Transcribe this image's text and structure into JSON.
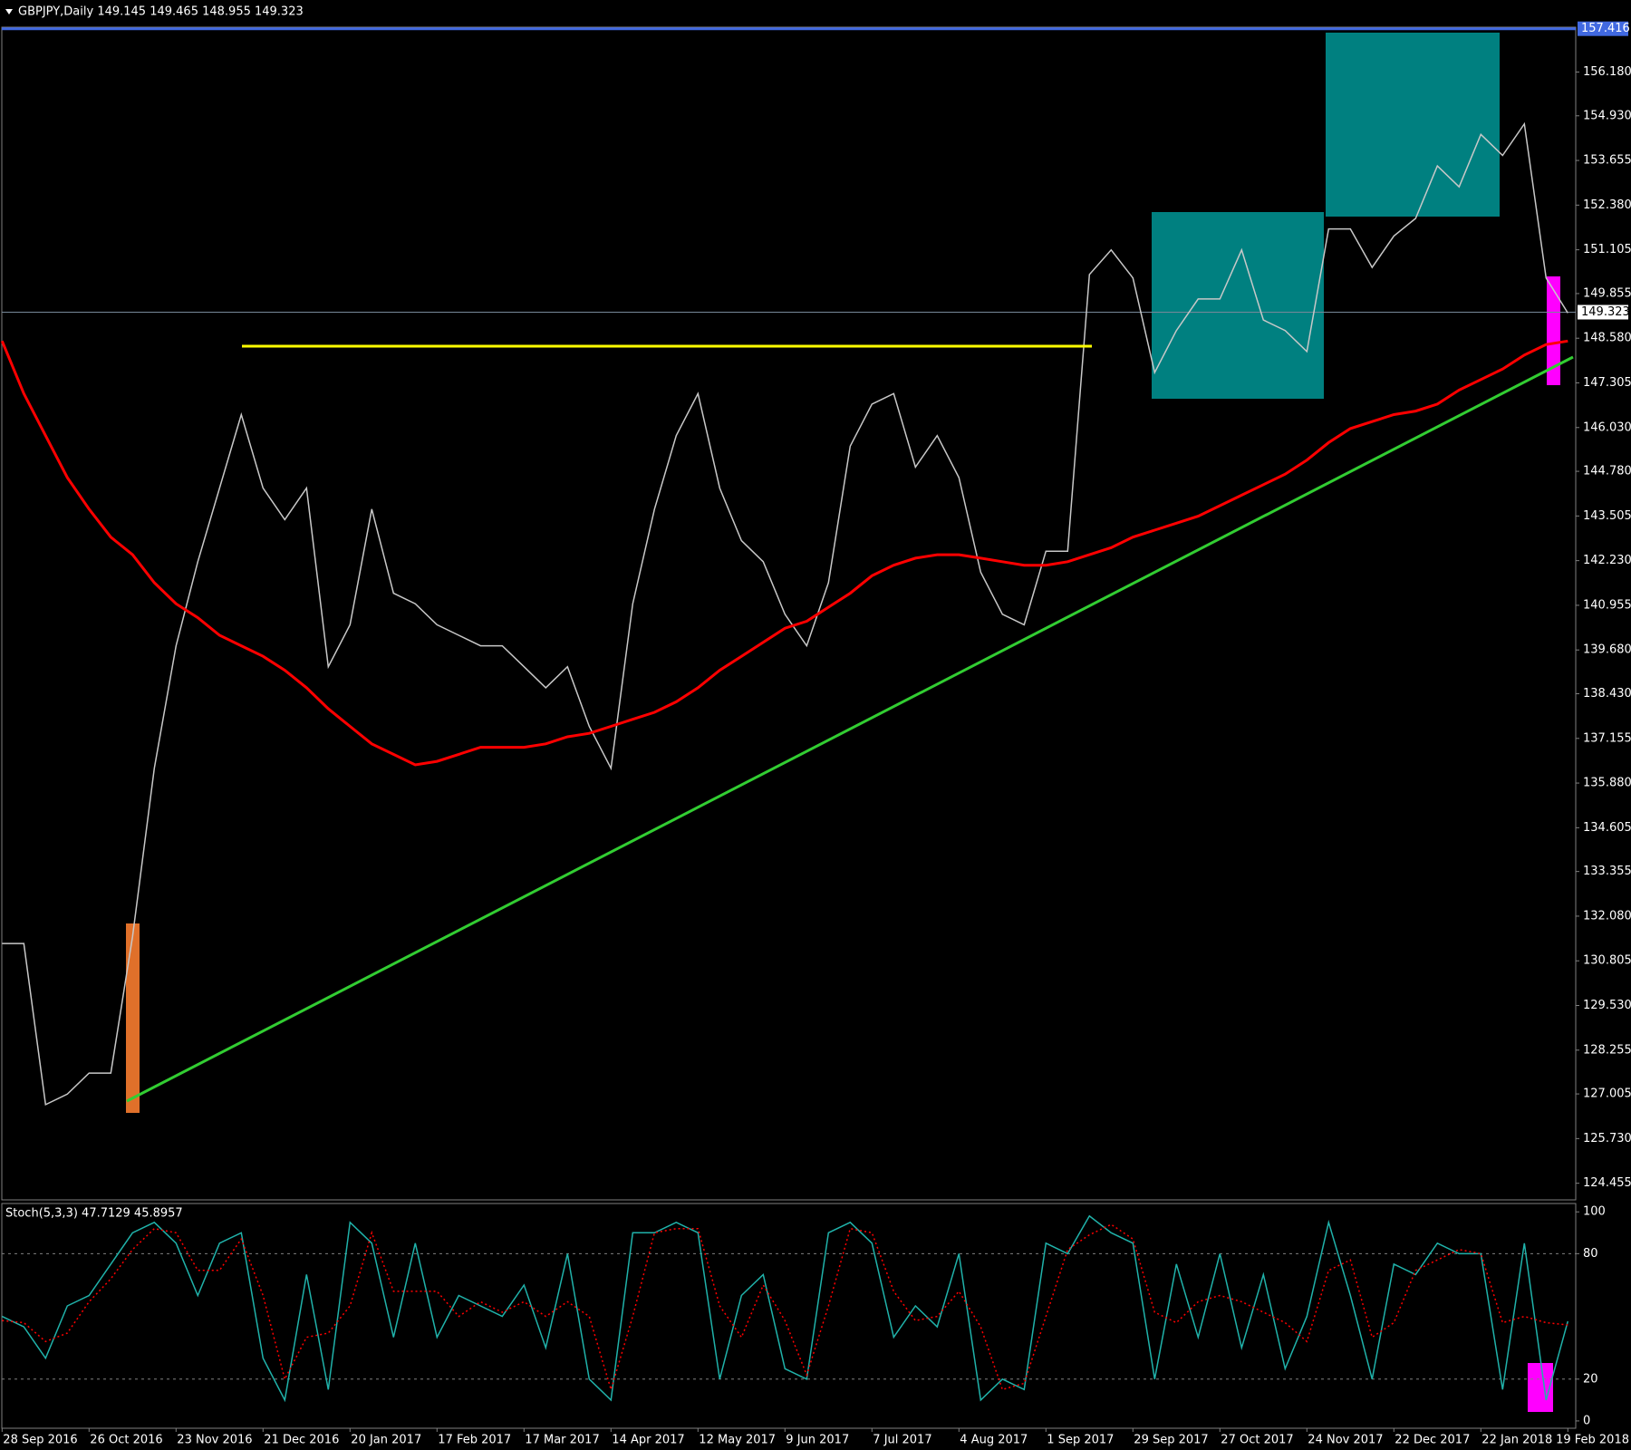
{
  "chart_data": [
    {
      "type": "line",
      "title": "GBPJPY,Daily  149.145 149.465 148.955 149.323",
      "ylim": [
        123.98,
        157.46
      ],
      "yticks": [
        124.455,
        {
          "value": 125.73,
          "label": "125.730"
        },
        127.005,
        128.255,
        {
          "value": 129.53,
          "label": "129.530"
        },
        130.805,
        {
          "value": 132.08,
          "label": "132.080"
        },
        133.355,
        134.605,
        {
          "value": 135.88,
          "label": "135.880"
        },
        137.155,
        {
          "value": 138.43,
          "label": "138.430"
        },
        {
          "value": 139.68,
          "label": "139.680"
        },
        140.955,
        {
          "value": 142.23,
          "label": "142.230"
        },
        143.505,
        {
          "value": 144.78,
          "label": "144.780"
        },
        {
          "value": 146.03,
          "label": "146.030"
        },
        147.305,
        {
          "value": 148.58,
          "label": "148.580"
        },
        149.855,
        151.105,
        {
          "value": 152.38,
          "label": "152.380"
        },
        153.655,
        {
          "value": 154.93,
          "label": "154.930"
        },
        {
          "value": 156.18,
          "label": "156.180"
        }
      ],
      "price_lines": [
        {
          "value": 157.416,
          "color": "#4169e1"
        },
        {
          "value": 149.323,
          "color": "#778899"
        }
      ],
      "series": [
        {
          "color": "#c8c8c8",
          "values": [
            131.3,
            131.3,
            126.7,
            127.0,
            127.6,
            127.6,
            131.5,
            136.3,
            139.8,
            142.2,
            144.3,
            146.4,
            144.3,
            143.4,
            144.3,
            139.2,
            140.4,
            143.7,
            141.3,
            141.0,
            140.4,
            140.1,
            139.8,
            139.8,
            139.2,
            138.6,
            139.2,
            137.5,
            136.3,
            141.0,
            143.7,
            145.8,
            147.0,
            144.3,
            142.8,
            142.2,
            140.7,
            139.8,
            141.6,
            145.5,
            146.7,
            147.0,
            144.9,
            145.8,
            144.6,
            141.9,
            140.7,
            140.4,
            142.5,
            142.5,
            150.4,
            151.1,
            150.3,
            147.6,
            148.8,
            149.7,
            149.7,
            151.1,
            149.1,
            148.8,
            148.2,
            151.7,
            151.7,
            150.6,
            151.5,
            152.0,
            153.5,
            152.9,
            154.4,
            153.8,
            154.7,
            150.3,
            149.3
          ]
        },
        {
          "color": "#ff0000",
          "values": [
            148.5,
            147.0,
            145.8,
            144.6,
            143.7,
            142.9,
            142.4,
            141.6,
            141.0,
            140.6,
            140.1,
            139.8,
            139.5,
            139.1,
            138.6,
            138.0,
            137.5,
            137.0,
            136.7,
            136.4,
            136.5,
            136.7,
            136.9,
            136.9,
            136.9,
            137.0,
            137.2,
            137.3,
            137.5,
            137.7,
            137.9,
            138.2,
            138.6,
            139.1,
            139.5,
            139.9,
            140.3,
            140.5,
            140.9,
            141.3,
            141.8,
            142.1,
            142.3,
            142.4,
            142.4,
            142.3,
            142.2,
            142.1,
            142.1,
            142.2,
            142.4,
            142.6,
            142.9,
            143.1,
            143.3,
            143.5,
            143.8,
            144.1,
            144.4,
            144.7,
            145.1,
            145.6,
            146.0,
            146.2,
            146.4,
            146.5,
            146.7,
            147.1,
            147.4,
            147.7,
            148.1,
            148.4,
            148.5
          ]
        }
      ]
    },
    {
      "type": "line",
      "title": "Stoch(5,3,3) 47.7129 45.8957",
      "ylim": [
        -3.5,
        104
      ],
      "yticks": [
        0,
        20,
        80,
        100
      ],
      "levels": [
        20,
        80
      ],
      "categories": [
        "28 Sep 2016",
        null,
        null,
        null,
        "26 Oct 2016",
        null,
        null,
        null,
        "23 Nov 2016",
        null,
        null,
        null,
        "21 Dec 2016",
        null,
        null,
        null,
        "20 Jan 2017",
        null,
        null,
        null,
        "17 Feb 2017",
        null,
        null,
        null,
        "17 Mar 2017",
        null,
        null,
        null,
        "14 Apr 2017",
        null,
        null,
        null,
        "12 May 2017",
        null,
        null,
        null,
        "9 Jun 2017",
        null,
        null,
        null,
        "7 Jul 2017",
        null,
        null,
        null,
        "4 Aug 2017",
        null,
        null,
        null,
        "1 Sep 2017",
        null,
        null,
        null,
        "29 Sep 2017",
        null,
        null,
        null,
        "27 Oct 2017",
        null,
        null,
        null,
        "24 Nov 2017",
        null,
        null,
        null,
        "22 Dec 2017",
        null,
        null,
        null,
        "22 Jan 2018",
        null,
        null,
        null,
        "19 Feb 2018"
      ],
      "series": [
        {
          "color": "#20b2aa",
          "values": [
            50,
            45,
            30,
            55,
            60,
            75,
            90,
            95,
            85,
            60,
            85,
            90,
            30,
            10,
            70,
            15,
            95,
            85,
            40,
            85,
            40,
            60,
            55,
            50,
            65,
            35,
            80,
            20,
            10,
            90,
            90,
            95,
            90,
            20,
            60,
            70,
            25,
            20,
            90,
            95,
            85,
            40,
            55,
            45,
            80,
            10,
            20,
            15,
            85,
            80,
            98,
            90,
            85,
            20,
            75,
            40,
            80,
            35,
            70,
            25,
            50,
            95,
            60,
            20,
            75,
            70,
            85,
            80,
            80,
            15,
            85,
            10,
            47.7
          ]
        },
        {
          "color": "#ff0000",
          "dashed": true,
          "values": [
            48,
            47,
            38,
            42,
            57,
            68,
            82,
            92,
            90,
            72,
            72,
            87,
            60,
            20,
            40,
            42,
            55,
            90,
            62,
            62,
            62,
            50,
            57,
            52,
            57,
            50,
            57,
            50,
            15,
            50,
            90,
            92,
            92,
            55,
            40,
            65,
            48,
            22,
            55,
            92,
            90,
            62,
            48,
            50,
            62,
            45,
            15,
            18,
            50,
            82,
            89,
            94,
            87,
            52,
            47,
            57,
            60,
            57,
            52,
            47,
            38,
            72,
            77,
            40,
            47,
            72,
            77,
            82,
            80,
            47,
            50,
            47,
            45.9
          ]
        }
      ]
    }
  ]
}
